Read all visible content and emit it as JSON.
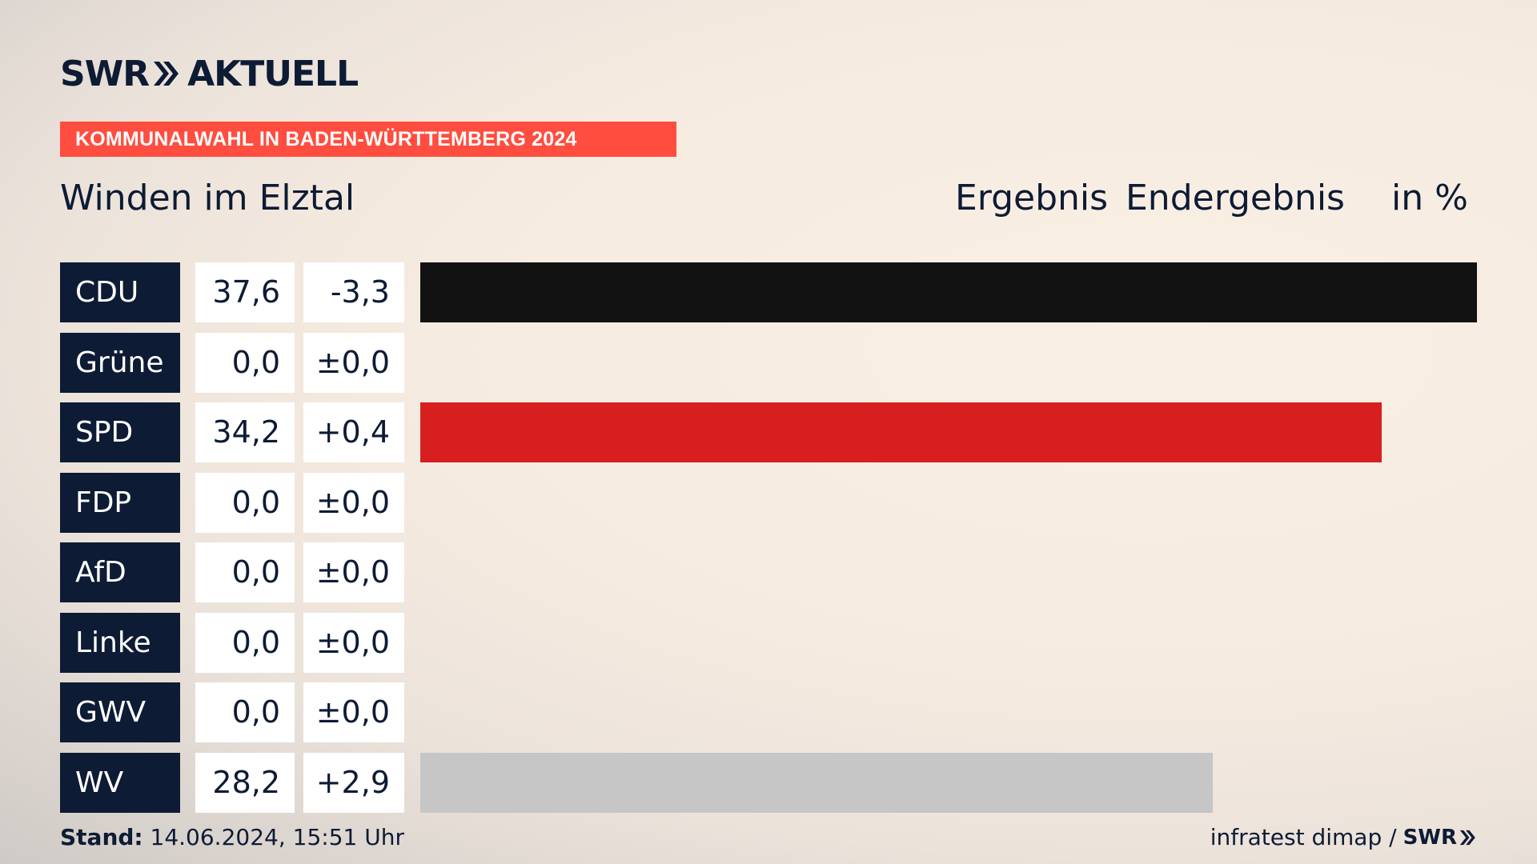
{
  "brand": {
    "swr": "SWR",
    "aktuell": "AKTUELL"
  },
  "banner": "KOMMUNALWAHL IN BADEN-WÜRTTEMBERG 2024",
  "place": "Winden im Elztal",
  "headers": {
    "ergebnis": "Ergebnis",
    "endergebnis": "Endergebnis",
    "unit": "in %"
  },
  "rows": [
    {
      "party": "CDU",
      "value": "37,6",
      "diff": "-3,3"
    },
    {
      "party": "Grüne",
      "value": "0,0",
      "diff": "±0,0"
    },
    {
      "party": "SPD",
      "value": "34,2",
      "diff": "+0,4"
    },
    {
      "party": "FDP",
      "value": "0,0",
      "diff": "±0,0"
    },
    {
      "party": "AfD",
      "value": "0,0",
      "diff": "±0,0"
    },
    {
      "party": "Linke",
      "value": "0,0",
      "diff": "±0,0"
    },
    {
      "party": "GWV",
      "value": "0,0",
      "diff": "±0,0"
    },
    {
      "party": "WV",
      "value": "28,2",
      "diff": "+2,9"
    }
  ],
  "footer": {
    "stand_label": "Stand:",
    "stand_value": " 14.06.2024, 15:51 Uhr",
    "source": "infratest dimap /",
    "source_logo": "SWR"
  },
  "colors": {
    "CDU": "#121212",
    "Grüne": "#4a9e3a",
    "SPD": "#d71f1f",
    "FDP": "#f5d400",
    "AfD": "#1a9de0",
    "Linke": "#b5198d",
    "GWV": "#9a9a9a",
    "WV": "#c6c6c6",
    "banner": "#ff4d3f",
    "navy": "#0d1b34"
  },
  "chart_data": {
    "type": "bar",
    "categories": [
      "CDU",
      "Grüne",
      "SPD",
      "FDP",
      "AfD",
      "Linke",
      "GWV",
      "WV"
    ],
    "values": [
      37.6,
      0.0,
      34.2,
      0.0,
      0.0,
      0.0,
      0.0,
      28.2
    ],
    "diffs": [
      -3.3,
      0.0,
      0.4,
      0.0,
      0.0,
      0.0,
      0.0,
      2.9
    ],
    "orientation": "horizontal",
    "xlim": [
      0,
      37.6
    ]
  }
}
